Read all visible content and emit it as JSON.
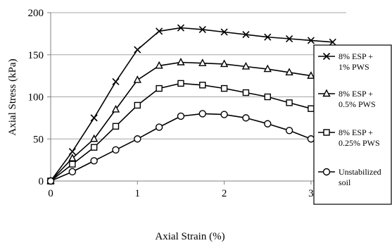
{
  "chart_data": {
    "type": "line",
    "xlabel": "Axial Strain (%)",
    "ylabel": "Axial Stress (kPa)",
    "xlim": [
      0,
      3.5
    ],
    "ylim": [
      0,
      200
    ],
    "xticks": [
      0,
      1,
      2,
      3
    ],
    "yticks": [
      0,
      50,
      100,
      150,
      200
    ],
    "grid": "horizontal",
    "legend_position": "right",
    "series": [
      {
        "name": "8% ESP + 1% PWS",
        "legend_lines": [
          "8% ESP +",
          "1% PWS"
        ],
        "marker": "x",
        "x": [
          0,
          0.25,
          0.5,
          0.75,
          1.0,
          1.25,
          1.5,
          1.75,
          2.0,
          2.25,
          2.5,
          2.75,
          3.0,
          3.25
        ],
        "y": [
          0,
          35,
          75,
          118,
          156,
          178,
          182,
          180,
          177,
          174,
          171,
          169,
          167,
          165
        ]
      },
      {
        "name": "8% ESP + 0.5% PWS",
        "legend_lines": [
          "8% ESP +",
          "0.5% PWS"
        ],
        "marker": "triangle",
        "x": [
          0,
          0.25,
          0.5,
          0.75,
          1.0,
          1.25,
          1.5,
          1.75,
          2.0,
          2.25,
          2.5,
          2.75,
          3.0
        ],
        "y": [
          0,
          27,
          50,
          85,
          120,
          137,
          141,
          140,
          139,
          136,
          133,
          129,
          125
        ]
      },
      {
        "name": "8% ESP + 0.25% PWS",
        "legend_lines": [
          "8% ESP +",
          "0.25% PWS"
        ],
        "marker": "square",
        "x": [
          0,
          0.25,
          0.5,
          0.75,
          1.0,
          1.25,
          1.5,
          1.75,
          2.0,
          2.25,
          2.5,
          2.75,
          3.0
        ],
        "y": [
          0,
          20,
          40,
          65,
          90,
          110,
          116,
          114,
          110,
          105,
          100,
          93,
          86
        ]
      },
      {
        "name": "Unstabilized soil",
        "legend_lines": [
          "Unstabilized",
          "soil"
        ],
        "marker": "circle",
        "x": [
          0,
          0.25,
          0.5,
          0.75,
          1.0,
          1.25,
          1.5,
          1.75,
          2.0,
          2.25,
          2.5,
          2.75,
          3.0
        ],
        "y": [
          0,
          11,
          24,
          37,
          50,
          64,
          77,
          80,
          79,
          75,
          68,
          60,
          50
        ]
      }
    ]
  }
}
